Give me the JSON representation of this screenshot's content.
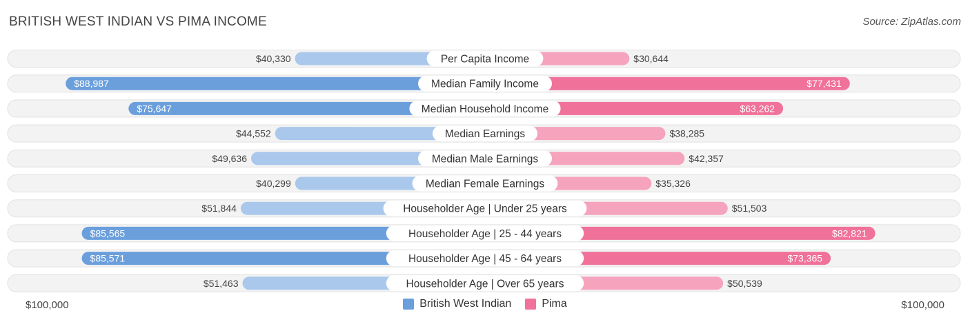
{
  "header": {
    "title": "BRITISH WEST INDIAN VS PIMA INCOME",
    "source": "Source: ZipAtlas.com"
  },
  "axis": {
    "left_label": "$100,000",
    "right_label": "$100,000"
  },
  "colors": {
    "left_strong": "#6a9fdc",
    "left_light": "#a9c8ec",
    "right_strong": "#f07199",
    "right_light": "#f6a3bd",
    "track": "#efefef"
  },
  "chart_data": {
    "type": "bar",
    "orientation": "diverging-horizontal",
    "title": "BRITISH WEST INDIAN VS PIMA INCOME",
    "xlim": [
      0,
      100000
    ],
    "legend": "bottom-center",
    "categories": [
      "Per Capita Income",
      "Median Family Income",
      "Median Household Income",
      "Median Earnings",
      "Median Male Earnings",
      "Median Female Earnings",
      "Householder Age | Under 25 years",
      "Householder Age | 25 - 44 years",
      "Householder Age | 45 - 64 years",
      "Householder Age | Over 65 years"
    ],
    "series": [
      {
        "name": "British West Indian",
        "values": [
          40330,
          88987,
          75647,
          44552,
          49636,
          40299,
          51844,
          85565,
          85571,
          51463
        ],
        "labels": [
          "$40,330",
          "$88,987",
          "$75,647",
          "$44,552",
          "$49,636",
          "$40,299",
          "$51,844",
          "$85,565",
          "$85,571",
          "$51,463"
        ]
      },
      {
        "name": "Pima",
        "values": [
          30644,
          77431,
          63262,
          38285,
          42357,
          35326,
          51503,
          82821,
          73365,
          50539
        ],
        "labels": [
          "$30,644",
          "$77,431",
          "$63,262",
          "$38,285",
          "$42,357",
          "$35,326",
          "$51,503",
          "$82,821",
          "$73,365",
          "$50,539"
        ]
      }
    ]
  }
}
